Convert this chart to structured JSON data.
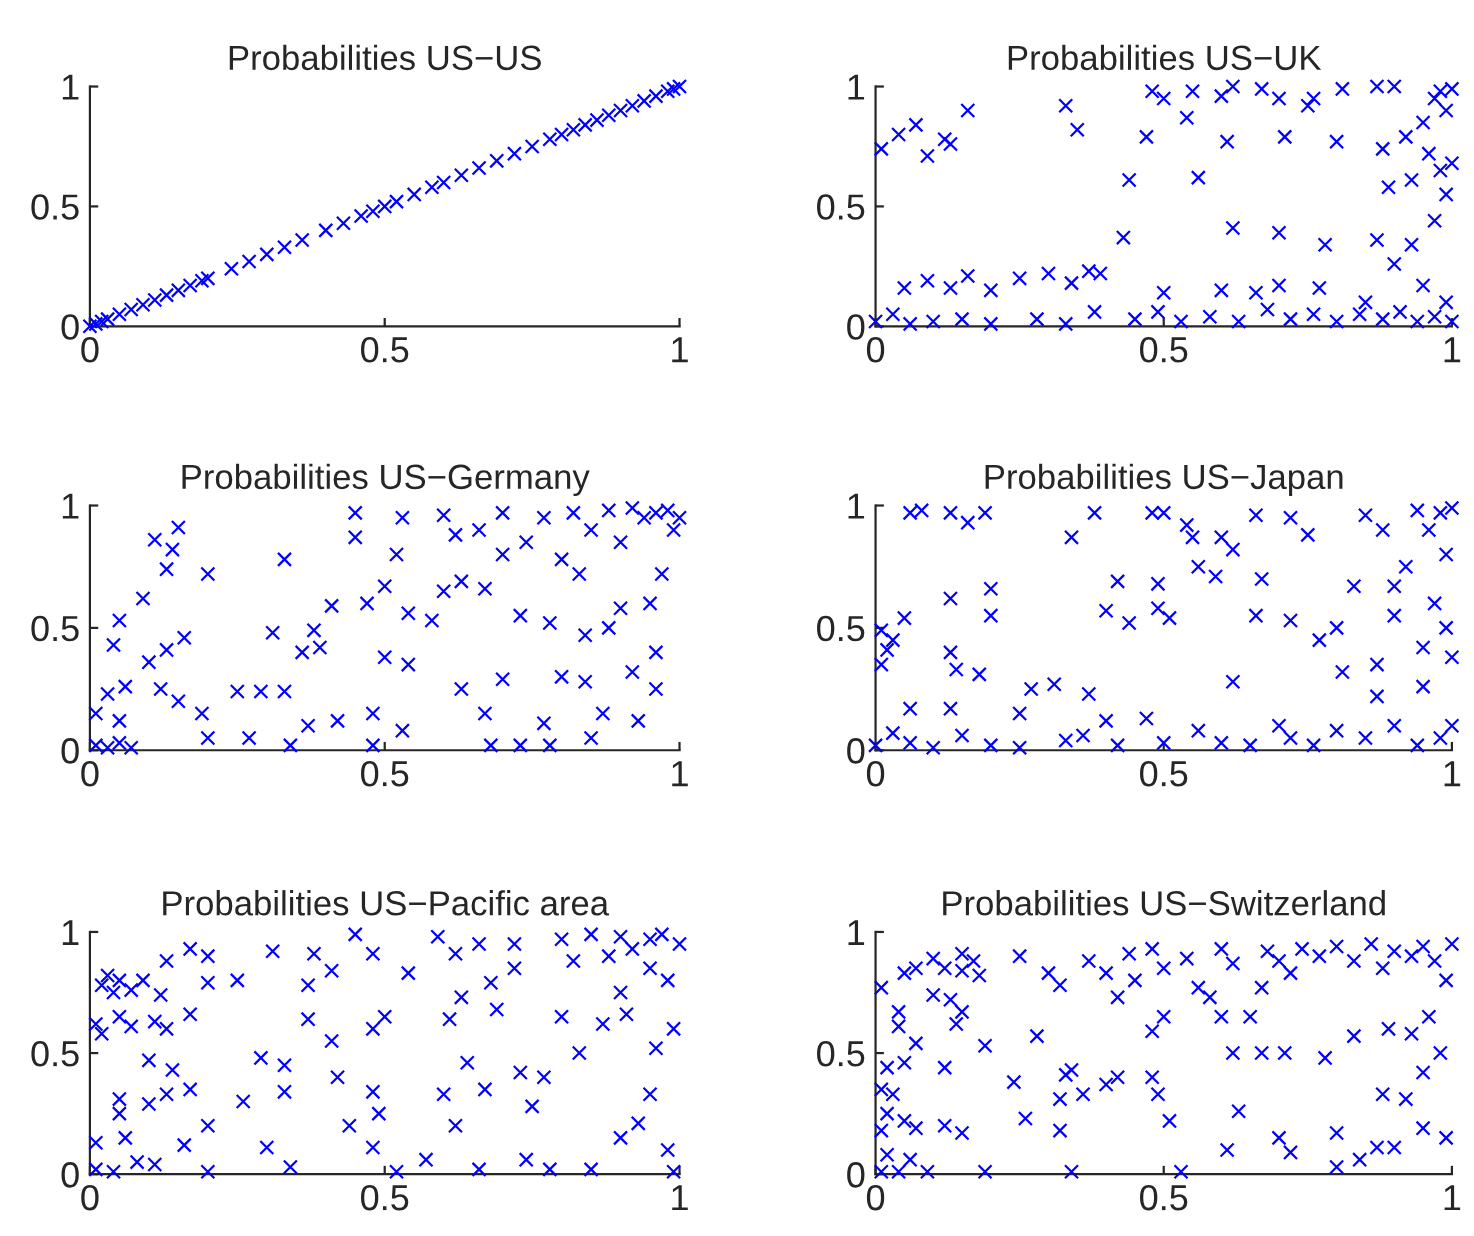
{
  "chart_data": [
    {
      "type": "scatter",
      "title": "Probabilities US−US",
      "color": "#0000ff",
      "marker": "cross",
      "grid": false,
      "xlim": [
        0,
        1
      ],
      "ylim": [
        0,
        1
      ],
      "xticks": [
        0,
        0.5,
        1
      ],
      "yticks": [
        0,
        0.5,
        1
      ],
      "x": [
        0,
        0.01,
        0.02,
        0.03,
        0.05,
        0.07,
        0.09,
        0.11,
        0.13,
        0.15,
        0.17,
        0.19,
        0.2,
        0.24,
        0.27,
        0.3,
        0.33,
        0.36,
        0.4,
        0.43,
        0.46,
        0.48,
        0.5,
        0.52,
        0.55,
        0.58,
        0.6,
        0.63,
        0.66,
        0.69,
        0.72,
        0.75,
        0.78,
        0.8,
        0.82,
        0.84,
        0.86,
        0.88,
        0.9,
        0.92,
        0.94,
        0.96,
        0.98,
        0.99,
        1.0
      ],
      "values": [
        0,
        0.01,
        0.02,
        0.03,
        0.05,
        0.07,
        0.09,
        0.11,
        0.13,
        0.15,
        0.17,
        0.19,
        0.2,
        0.24,
        0.27,
        0.3,
        0.33,
        0.36,
        0.4,
        0.43,
        0.46,
        0.48,
        0.5,
        0.52,
        0.55,
        0.58,
        0.6,
        0.63,
        0.66,
        0.69,
        0.72,
        0.75,
        0.78,
        0.8,
        0.82,
        0.84,
        0.86,
        0.88,
        0.9,
        0.92,
        0.94,
        0.96,
        0.98,
        0.99,
        1.0
      ]
    },
    {
      "type": "scatter",
      "title": "Probabilities US−UK",
      "color": "#0000ff",
      "marker": "cross",
      "grid": false,
      "xlim": [
        0,
        1
      ],
      "ylim": [
        0,
        1
      ],
      "xticks": [
        0,
        0.5,
        1
      ],
      "yticks": [
        0,
        0.5,
        1
      ],
      "x": [
        0.01,
        0.04,
        0.07,
        0.09,
        0.12,
        0.13,
        0.16,
        0.33,
        0.35,
        0.48,
        0.5,
        0.55,
        0.6,
        0.62,
        0.67,
        0.7,
        0.75,
        0.76,
        0.81,
        0.87,
        0.9,
        0.47,
        0.54,
        0.61,
        0.71,
        0.8,
        0.88,
        0.92,
        0.95,
        0.97,
        0.98,
        0.99,
        1.0,
        0.44,
        0.56,
        0.43,
        0.62,
        0.7,
        0.78,
        0.87,
        0.9,
        0.93,
        0.97,
        0.99,
        0.98,
        1.0,
        0.89,
        0.93,
        0.96,
        0.05,
        0.09,
        0.13,
        0.16,
        0.2,
        0.25,
        0.3,
        0.34,
        0.37,
        0.39,
        0.5,
        0.6,
        0.66,
        0.7,
        0.77,
        0.85,
        0.95,
        0.0,
        0.03,
        0.06,
        0.1,
        0.15,
        0.2,
        0.28,
        0.33,
        0.38,
        0.45,
        0.49,
        0.53,
        0.58,
        0.63,
        0.68,
        0.72,
        0.76,
        0.8,
        0.84,
        0.88,
        0.91,
        0.94,
        0.97,
        1.0,
        0.99
      ],
      "values": [
        0.74,
        0.8,
        0.84,
        0.71,
        0.78,
        0.76,
        0.9,
        0.92,
        0.82,
        0.98,
        0.95,
        0.98,
        0.96,
        1.0,
        0.99,
        0.95,
        0.92,
        0.95,
        0.99,
        1.0,
        1.0,
        0.79,
        0.87,
        0.77,
        0.79,
        0.77,
        0.74,
        0.79,
        0.85,
        0.95,
        0.98,
        0.9,
        0.99,
        0.61,
        0.62,
        0.37,
        0.41,
        0.39,
        0.34,
        0.36,
        0.26,
        0.34,
        0.44,
        0.55,
        0.65,
        0.68,
        0.58,
        0.61,
        0.72,
        0.16,
        0.19,
        0.16,
        0.21,
        0.15,
        0.2,
        0.22,
        0.18,
        0.23,
        0.22,
        0.14,
        0.15,
        0.14,
        0.17,
        0.16,
        0.1,
        0.17,
        0.02,
        0.05,
        0.01,
        0.02,
        0.03,
        0.01,
        0.03,
        0.01,
        0.06,
        0.03,
        0.06,
        0.02,
        0.04,
        0.02,
        0.07,
        0.03,
        0.05,
        0.02,
        0.05,
        0.03,
        0.06,
        0.02,
        0.04,
        0.02,
        0.1
      ]
    },
    {
      "type": "scatter",
      "title": "Probabilities US−Germany",
      "color": "#0000ff",
      "marker": "cross",
      "grid": false,
      "xlim": [
        0,
        1
      ],
      "ylim": [
        0,
        1
      ],
      "xticks": [
        0,
        0.5,
        1
      ],
      "yticks": [
        0,
        0.5,
        1
      ],
      "x": [
        0.01,
        0.03,
        0.05,
        0.07,
        0.01,
        0.03,
        0.05,
        0.06,
        0.04,
        0.05,
        0.09,
        0.11,
        0.15,
        0.14,
        0.13,
        0.2,
        0.1,
        0.13,
        0.16,
        0.12,
        0.15,
        0.19,
        0.2,
        0.25,
        0.29,
        0.33,
        0.27,
        0.33,
        0.31,
        0.36,
        0.39,
        0.41,
        0.38,
        0.34,
        0.37,
        0.42,
        0.45,
        0.45,
        0.53,
        0.6,
        0.52,
        0.47,
        0.5,
        0.54,
        0.58,
        0.5,
        0.54,
        0.48,
        0.48,
        0.53,
        0.6,
        0.62,
        0.63,
        0.67,
        0.7,
        0.66,
        0.7,
        0.63,
        0.67,
        0.68,
        0.7,
        0.74,
        0.77,
        0.8,
        0.82,
        0.85,
        0.88,
        0.9,
        0.92,
        0.94,
        0.96,
        0.98,
        1.0,
        0.99,
        0.97,
        0.95,
        0.9,
        0.78,
        0.84,
        0.88,
        0.92,
        0.96,
        0.8,
        0.84,
        0.87,
        0.78,
        0.85,
        0.73,
        0.83,
        0.96,
        0.73,
        0.77,
        0.93
      ],
      "values": [
        0.02,
        0.01,
        0.03,
        0.01,
        0.15,
        0.23,
        0.12,
        0.26,
        0.43,
        0.53,
        0.62,
        0.86,
        0.91,
        0.82,
        0.74,
        0.72,
        0.36,
        0.41,
        0.46,
        0.25,
        0.2,
        0.15,
        0.05,
        0.24,
        0.24,
        0.24,
        0.05,
        0.78,
        0.48,
        0.4,
        0.42,
        0.59,
        0.49,
        0.02,
        0.1,
        0.12,
        0.97,
        0.87,
        0.95,
        0.96,
        0.8,
        0.6,
        0.67,
        0.56,
        0.53,
        0.38,
        0.35,
        0.15,
        0.02,
        0.08,
        0.65,
        0.88,
        0.69,
        0.66,
        0.8,
        0.9,
        0.97,
        0.25,
        0.15,
        0.02,
        0.29,
        0.85,
        0.95,
        0.78,
        0.97,
        0.9,
        0.98,
        0.85,
        0.99,
        0.95,
        0.97,
        0.98,
        0.95,
        0.9,
        0.72,
        0.6,
        0.58,
        0.52,
        0.47,
        0.5,
        0.32,
        0.4,
        0.3,
        0.28,
        0.15,
        0.02,
        0.05,
        0.02,
        0.72,
        0.25,
        0.55,
        0.11,
        0.12
      ]
    },
    {
      "type": "scatter",
      "title": "Probabilities US−Japan",
      "color": "#0000ff",
      "marker": "cross",
      "grid": false,
      "xlim": [
        0,
        1
      ],
      "ylim": [
        0,
        1
      ],
      "xticks": [
        0,
        0.5,
        1
      ],
      "yticks": [
        0,
        0.5,
        1
      ],
      "x": [
        0.01,
        0.03,
        0.01,
        0.02,
        0.05,
        0.06,
        0.08,
        0.13,
        0.16,
        0.19,
        0.13,
        0.2,
        0.2,
        0.13,
        0.14,
        0.18,
        0.13,
        0.06,
        0.0,
        0.03,
        0.06,
        0.1,
        0.15,
        0.2,
        0.25,
        0.27,
        0.31,
        0.25,
        0.33,
        0.36,
        0.34,
        0.38,
        0.4,
        0.42,
        0.44,
        0.37,
        0.4,
        0.42,
        0.48,
        0.5,
        0.49,
        0.49,
        0.51,
        0.47,
        0.5,
        0.54,
        0.55,
        0.56,
        0.59,
        0.6,
        0.62,
        0.62,
        0.6,
        0.66,
        0.66,
        0.67,
        0.72,
        0.75,
        0.72,
        0.77,
        0.8,
        0.81,
        0.83,
        0.85,
        0.88,
        0.9,
        0.92,
        0.94,
        0.96,
        0.98,
        1.0,
        0.99,
        0.97,
        0.99,
        1.0,
        0.95,
        0.9,
        0.87,
        0.87,
        0.95,
        0.72,
        0.76,
        0.8,
        0.85,
        0.9,
        0.94,
        0.98,
        1.0,
        0.7,
        0.65,
        0.56
      ],
      "values": [
        0.49,
        0.45,
        0.35,
        0.41,
        0.54,
        0.97,
        0.98,
        0.97,
        0.93,
        0.97,
        0.62,
        0.66,
        0.55,
        0.4,
        0.33,
        0.31,
        0.17,
        0.17,
        0.02,
        0.07,
        0.03,
        0.01,
        0.06,
        0.02,
        0.15,
        0.25,
        0.27,
        0.01,
        0.04,
        0.06,
        0.87,
        0.97,
        0.57,
        0.69,
        0.52,
        0.23,
        0.12,
        0.02,
        0.97,
        0.97,
        0.68,
        0.58,
        0.54,
        0.13,
        0.03,
        0.92,
        0.87,
        0.75,
        0.71,
        0.87,
        0.82,
        0.28,
        0.03,
        0.96,
        0.55,
        0.7,
        0.95,
        0.88,
        0.53,
        0.45,
        0.5,
        0.32,
        0.67,
        0.96,
        0.9,
        0.67,
        0.75,
        0.98,
        0.9,
        0.97,
        0.99,
        0.8,
        0.6,
        0.5,
        0.38,
        0.42,
        0.55,
        0.35,
        0.22,
        0.26,
        0.05,
        0.02,
        0.08,
        0.05,
        0.1,
        0.02,
        0.05,
        0.1,
        0.1,
        0.02,
        0.08
      ]
    },
    {
      "type": "scatter",
      "title": "Probabilities US−Pacific area",
      "color": "#0000ff",
      "marker": "cross",
      "grid": false,
      "xlim": [
        0,
        1
      ],
      "ylim": [
        0,
        1
      ],
      "xticks": [
        0,
        0.5,
        1
      ],
      "yticks": [
        0,
        0.5,
        1
      ],
      "x": [
        0.01,
        0.02,
        0.02,
        0.03,
        0.04,
        0.05,
        0.05,
        0.07,
        0.07,
        0.09,
        0.11,
        0.13,
        0.13,
        0.12,
        0.17,
        0.2,
        0.2,
        0.25,
        0.17,
        0.1,
        0.14,
        0.13,
        0.17,
        0.1,
        0.05,
        0.05,
        0.06,
        0.01,
        0.01,
        0.04,
        0.08,
        0.11,
        0.16,
        0.2,
        0.2,
        0.26,
        0.29,
        0.31,
        0.33,
        0.33,
        0.3,
        0.34,
        0.38,
        0.37,
        0.41,
        0.37,
        0.41,
        0.42,
        0.44,
        0.45,
        0.48,
        0.48,
        0.5,
        0.48,
        0.49,
        0.48,
        0.54,
        0.59,
        0.62,
        0.61,
        0.63,
        0.64,
        0.6,
        0.62,
        0.66,
        0.68,
        0.67,
        0.69,
        0.72,
        0.72,
        0.73,
        0.75,
        0.77,
        0.8,
        0.82,
        0.85,
        0.88,
        0.9,
        0.92,
        0.95,
        0.97,
        1.0,
        0.98,
        0.95,
        0.9,
        0.87,
        0.83,
        0.8,
        0.91,
        0.96,
        0.99,
        0.95,
        0.93,
        0.9,
        0.98,
        0.85,
        0.78,
        0.74,
        0.66,
        0.57,
        0.52,
        0.99
      ],
      "values": [
        0.62,
        0.58,
        0.78,
        0.82,
        0.75,
        0.8,
        0.65,
        0.76,
        0.61,
        0.8,
        0.63,
        0.88,
        0.6,
        0.74,
        0.93,
        0.9,
        0.79,
        0.8,
        0.66,
        0.47,
        0.43,
        0.33,
        0.35,
        0.29,
        0.31,
        0.25,
        0.15,
        0.13,
        0.02,
        0.01,
        0.05,
        0.04,
        0.12,
        0.2,
        0.01,
        0.3,
        0.48,
        0.92,
        0.45,
        0.34,
        0.11,
        0.03,
        0.91,
        0.78,
        0.84,
        0.64,
        0.55,
        0.4,
        0.2,
        0.99,
        0.91,
        0.6,
        0.65,
        0.34,
        0.25,
        0.11,
        0.83,
        0.98,
        0.91,
        0.64,
        0.73,
        0.46,
        0.33,
        0.2,
        0.95,
        0.79,
        0.35,
        0.68,
        0.95,
        0.85,
        0.42,
        0.28,
        0.4,
        0.97,
        0.88,
        0.99,
        0.9,
        0.98,
        0.93,
        0.97,
        0.99,
        0.95,
        0.8,
        0.85,
        0.75,
        0.62,
        0.5,
        0.65,
        0.66,
        0.52,
        0.6,
        0.33,
        0.21,
        0.15,
        0.1,
        0.02,
        0.02,
        0.06,
        0.02,
        0.06,
        0.01,
        0.01
      ]
    },
    {
      "type": "scatter",
      "title": "Probabilities US−Switzerland",
      "color": "#0000ff",
      "marker": "cross",
      "grid": false,
      "xlim": [
        0,
        1
      ],
      "ylim": [
        0,
        1
      ],
      "xticks": [
        0,
        0.5,
        1
      ],
      "yticks": [
        0,
        0.5,
        1
      ],
      "x": [
        0.01,
        0.02,
        0.01,
        0.02,
        0.01,
        0.03,
        0.02,
        0.01,
        0.04,
        0.05,
        0.04,
        0.05,
        0.07,
        0.07,
        0.07,
        0.05,
        0.09,
        0.06,
        0.04,
        0.1,
        0.1,
        0.12,
        0.13,
        0.15,
        0.15,
        0.17,
        0.18,
        0.14,
        0.15,
        0.12,
        0.12,
        0.15,
        0.19,
        0.19,
        0.25,
        0.24,
        0.26,
        0.28,
        0.3,
        0.32,
        0.33,
        0.34,
        0.32,
        0.32,
        0.34,
        0.36,
        0.37,
        0.4,
        0.42,
        0.44,
        0.45,
        0.4,
        0.42,
        0.48,
        0.5,
        0.48,
        0.5,
        0.48,
        0.49,
        0.51,
        0.53,
        0.54,
        0.56,
        0.58,
        0.6,
        0.6,
        0.62,
        0.62,
        0.63,
        0.61,
        0.65,
        0.67,
        0.68,
        0.7,
        0.72,
        0.74,
        0.77,
        0.8,
        0.83,
        0.86,
        0.88,
        0.9,
        0.93,
        0.95,
        0.97,
        1.0,
        0.99,
        0.96,
        0.98,
        0.95,
        0.92,
        0.88,
        0.93,
        0.89,
        0.83,
        0.78,
        0.71,
        0.7,
        0.72,
        0.8,
        0.8,
        0.84,
        0.87,
        0.9,
        0.95,
        0.99,
        0.67
      ],
      "values": [
        0.01,
        0.08,
        0.18,
        0.25,
        0.35,
        0.33,
        0.44,
        0.77,
        0.61,
        0.46,
        0.67,
        0.83,
        0.85,
        0.54,
        0.19,
        0.22,
        0.01,
        0.06,
        0.01,
        0.89,
        0.74,
        0.85,
        0.72,
        0.84,
        0.91,
        0.88,
        0.82,
        0.62,
        0.67,
        0.44,
        0.2,
        0.17,
        0.53,
        0.01,
        0.9,
        0.38,
        0.23,
        0.57,
        0.83,
        0.78,
        0.41,
        0.43,
        0.31,
        0.18,
        0.01,
        0.33,
        0.88,
        0.83,
        0.73,
        0.91,
        0.8,
        0.37,
        0.4,
        0.59,
        0.65,
        0.93,
        0.85,
        0.4,
        0.33,
        0.22,
        0.01,
        0.89,
        0.77,
        0.73,
        0.65,
        0.93,
        0.87,
        0.5,
        0.26,
        0.1,
        0.65,
        0.77,
        0.92,
        0.88,
        0.83,
        0.93,
        0.9,
        0.94,
        0.88,
        0.95,
        0.85,
        0.92,
        0.9,
        0.94,
        0.88,
        0.95,
        0.8,
        0.65,
        0.5,
        0.42,
        0.31,
        0.33,
        0.58,
        0.6,
        0.57,
        0.48,
        0.5,
        0.15,
        0.09,
        0.17,
        0.03,
        0.06,
        0.11,
        0.11,
        0.19,
        0.15,
        0.5
      ]
    }
  ]
}
